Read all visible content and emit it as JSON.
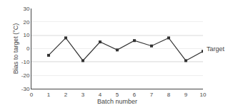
{
  "chart_data": {
    "type": "line",
    "x": [
      1,
      2,
      3,
      4,
      5,
      6,
      7,
      8,
      9,
      10
    ],
    "values": [
      -5,
      8,
      -9,
      5,
      -1,
      6,
      2,
      8,
      -9,
      -2
    ],
    "color": "#333333",
    "marker": "square",
    "xlabel": "Batch number",
    "ylabel": "Bias to target (°C)",
    "xlim": [
      0,
      10
    ],
    "ylim": [
      -30,
      30
    ],
    "xticks": [
      0,
      1,
      2,
      3,
      4,
      5,
      6,
      7,
      8,
      9,
      10
    ],
    "yticks": [
      -30,
      -20,
      -10,
      0,
      10,
      20,
      30
    ],
    "grid": true,
    "reference_lines": [
      {
        "value": 0,
        "label": "Target",
        "color": "#333333"
      },
      {
        "value": 10,
        "color": "#777777"
      },
      {
        "value": -10,
        "color": "#777777"
      }
    ]
  }
}
